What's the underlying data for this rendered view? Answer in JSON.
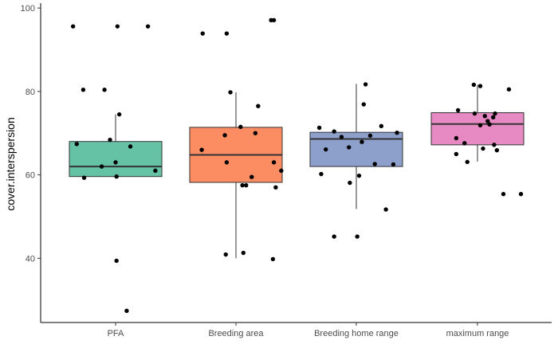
{
  "chart_data": {
    "type": "box",
    "ylabel": "cover.interspersion",
    "xlabel": "",
    "ylim": [
      24.6,
      100.4
    ],
    "yticks": [
      40,
      60,
      80,
      100
    ],
    "grid": false,
    "legend": "none",
    "categories": [
      "PFA",
      "Breeding area",
      "Breeding home range",
      "maximum range"
    ],
    "colors": [
      "#66c2a5",
      "#fc8d62",
      "#8da0cb",
      "#e78ac3"
    ],
    "boxes": [
      {
        "q1": 59.6,
        "median": 62.0,
        "q3": 68.0,
        "whisker_low": 59.3,
        "whisker_high": 74.5
      },
      {
        "q1": 58.2,
        "median": 64.8,
        "q3": 71.4,
        "whisker_low": 40.0,
        "whisker_high": 79.8
      },
      {
        "q1": 62.0,
        "median": 68.6,
        "q3": 70.2,
        "whisker_low": 51.8,
        "whisker_high": 81.8
      },
      {
        "q1": 67.2,
        "median": 72.2,
        "q3": 74.9,
        "whisker_low": 63.2,
        "whisker_high": 81.6
      }
    ],
    "points": [
      {
        "category": "PFA",
        "offsets": [
          -0.46,
          0.02,
          0.35,
          -0.35,
          -0.12,
          0.04,
          -0.42,
          -0.06,
          0.16,
          0.43,
          -0.15,
          0.0,
          0.01,
          -0.34,
          0.01,
          0.12
        ],
        "values": [
          95.6,
          95.6,
          95.6,
          80.4,
          80.4,
          74.5,
          67.4,
          68.4,
          66.8,
          61.0,
          62.0,
          63.0,
          59.6,
          59.3,
          39.4,
          27.4
        ]
      },
      {
        "category": "Breeding area",
        "offsets": [
          -0.36,
          0.41,
          0.38,
          -0.1,
          -0.06,
          0.24,
          -0.12,
          0.05,
          0.21,
          -0.37,
          -0.1,
          0.11,
          0.49,
          0.41,
          0.07,
          0.17,
          0.08,
          0.43,
          0.4,
          -0.11
        ],
        "values": [
          93.9,
          97.1,
          97.1,
          93.9,
          79.8,
          76.5,
          69.5,
          71.5,
          70.0,
          66.0,
          63.0,
          57.5,
          61.0,
          63.0,
          57.5,
          59.5,
          41.3,
          57.0,
          39.8,
          40.9
        ]
      },
      {
        "category": "Breeding home range",
        "offsets": [
          0.1,
          0.08,
          -0.4,
          -0.24,
          -0.33,
          0.27,
          0.44,
          0.15,
          -0.16,
          0.4,
          0.2,
          -0.08,
          0.03,
          -0.38,
          -0.07,
          -0.24,
          0.32,
          0.06,
          0.01
        ],
        "values": [
          81.7,
          76.9,
          71.3,
          70.4,
          66.1,
          71.7,
          70.1,
          69.4,
          69.1,
          62.5,
          62.6,
          66.6,
          59.8,
          60.2,
          58.1,
          45.2,
          51.7,
          67.9,
          45.2
        ]
      },
      {
        "category": "maximum range",
        "offsets": [
          -0.04,
          0.03,
          0.34,
          -0.21,
          -0.03,
          0.08,
          0.17,
          0.11,
          0.13,
          0.03,
          -0.23,
          -0.14,
          0.18,
          0.21,
          -0.23,
          0.28,
          0.19,
          0.06,
          -0.11,
          0.47
        ],
        "values": [
          81.6,
          81.3,
          80.5,
          75.5,
          74.7,
          74.1,
          73.8,
          72.9,
          72.1,
          71.9,
          68.8,
          67.6,
          67.2,
          65.9,
          65.0,
          55.4,
          74.7,
          66.3,
          63.1,
          55.4
        ]
      }
    ]
  }
}
